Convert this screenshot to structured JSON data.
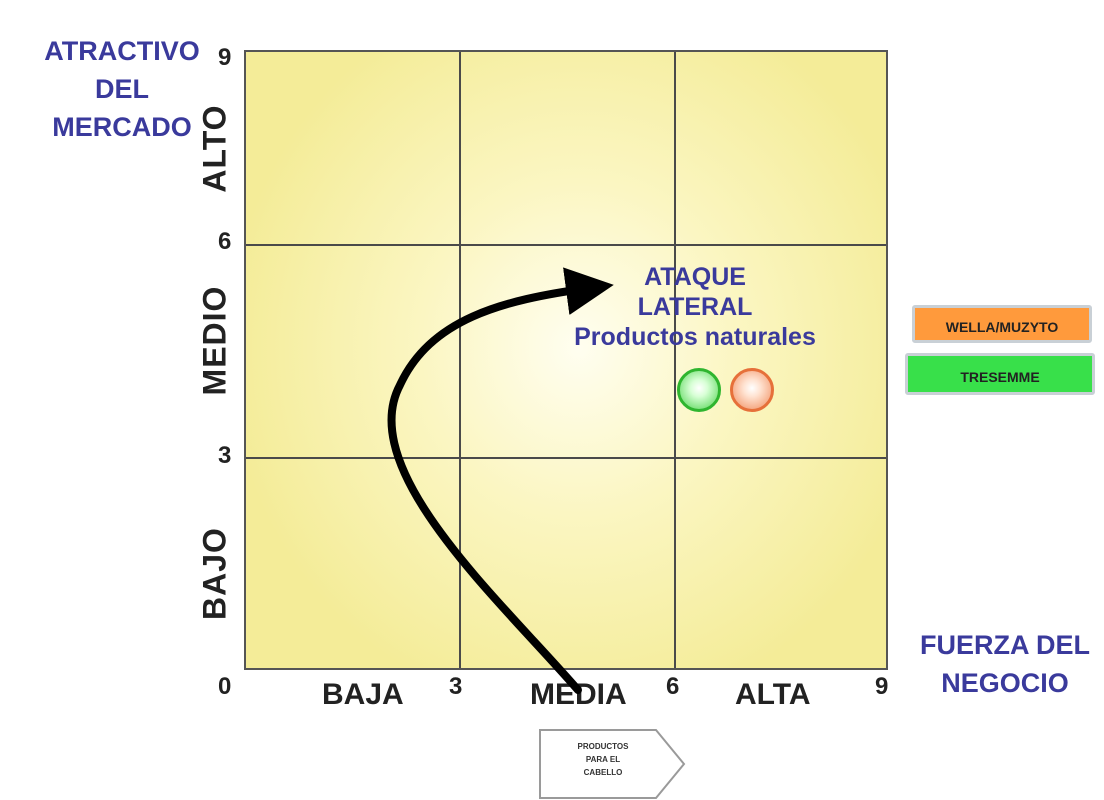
{
  "y_axis_title": [
    "ATRACTIVO",
    "DEL",
    "MERCADO"
  ],
  "x_axis_title": [
    "FUERZA DEL",
    "NEGOCIO"
  ],
  "y_ticks": [
    "9",
    "6",
    "3",
    "0"
  ],
  "x_ticks": [
    "3",
    "6",
    "9"
  ],
  "y_bands": [
    "ALTO",
    "MEDIO",
    "BAJO"
  ],
  "x_bands": [
    "BAJA",
    "MEDIA",
    "ALTA"
  ],
  "strategy_label": [
    "ATAQUE",
    "LATERAL",
    "Productos naturales"
  ],
  "legend": [
    {
      "label": "WELLA/MUZYTO",
      "color": "#ff9a3c"
    },
    {
      "label": "TRESEMME",
      "color": "#38e04a"
    }
  ],
  "callout_text": [
    "PRODUCTOS",
    "PARA EL",
    "CABELLO"
  ],
  "bubbles": [
    {
      "series": "TRESEMME",
      "x": 6.4,
      "y": 3.9,
      "color": "#4bd24b"
    },
    {
      "series": "WELLA/MUZYTO",
      "x": 7.1,
      "y": 3.9,
      "color": "#f08a5a"
    }
  ],
  "colors": {
    "title": "#3a3a9c",
    "grid_fill": "#f4ec98",
    "arrow": "#000000"
  }
}
